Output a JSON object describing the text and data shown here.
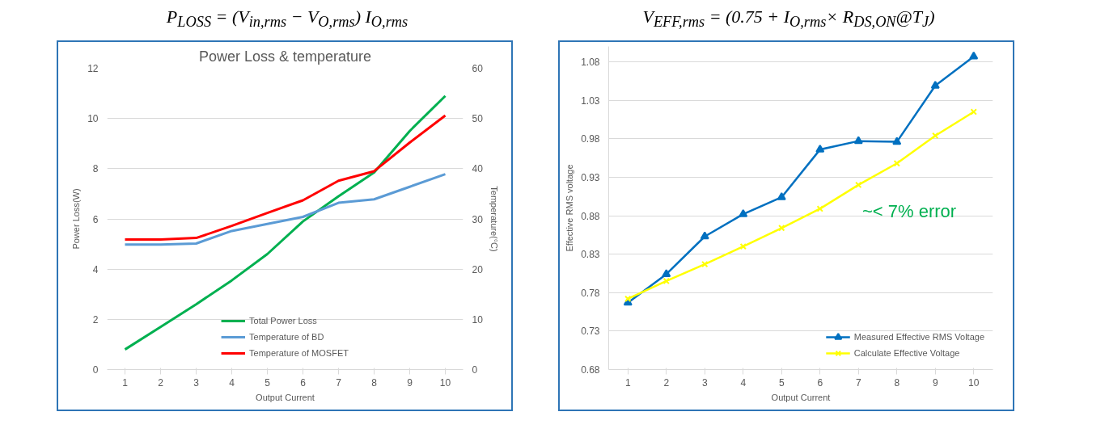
{
  "chart_data": [
    {
      "type": "line",
      "title": "P$_{LOSS}$ = (V$_{in,rms}$ − V$_{O,rms}$) I$_{O,rms}$",
      "subtitle": "Power Loss & temperature",
      "xlabel": "Output Current",
      "ylabel": "Power Loss(W)",
      "y2label": "Temperature(°C)",
      "categories": [
        "1",
        "2",
        "3",
        "4",
        "5",
        "6",
        "7",
        "8",
        "9",
        "10"
      ],
      "series": [
        {
          "name": "Total Power Loss",
          "color": "#00b050",
          "values": [
            0.8,
            1.7,
            2.6,
            3.55,
            4.6,
            5.9,
            6.9,
            7.85,
            9.5,
            10.9
          ]
        },
        {
          "name": "Temperature of BD",
          "color": "#5b9bd5",
          "axis": "y2",
          "values": [
            24.9,
            24.9,
            25.1,
            27.6,
            29.0,
            30.4,
            33.2,
            33.9,
            36.4,
            38.9
          ]
        },
        {
          "name": "Temperature of MOSFET",
          "color": "#ff0000",
          "axis": "y2",
          "values": [
            25.9,
            25.9,
            26.2,
            28.6,
            31.2,
            33.7,
            37.6,
            39.5,
            45.2,
            50.6
          ]
        }
      ],
      "ylim": [
        0,
        12
      ],
      "yticks": [
        0,
        2,
        4,
        6,
        8,
        10,
        12
      ],
      "y2lim": [
        0,
        60
      ],
      "y2ticks": [
        0,
        10,
        20,
        30,
        40,
        50,
        60
      ],
      "grid": "y",
      "legend": "bottom",
      "marker": "none"
    },
    {
      "type": "line",
      "title": "V$_{EFF,rms}$ = (0.75 + I$_{O,rms}$× R$_{DS,ON}$@T$_{J}$)",
      "xlabel": "Output Current",
      "ylabel": "Effective RMS voltage",
      "categories": [
        "1",
        "2",
        "3",
        "4",
        "5",
        "6",
        "7",
        "8",
        "9",
        "10"
      ],
      "series": [
        {
          "name": "Measured Effective RMS Voltage",
          "color": "#0070c0",
          "marker": "triangle",
          "values": [
            0.767,
            0.804,
            0.853,
            0.882,
            0.904,
            0.966,
            0.977,
            0.976,
            1.049,
            1.087
          ]
        },
        {
          "name": "Calculate Effective Voltage",
          "color": "#ffff00",
          "marker": "cross",
          "values": [
            0.772,
            0.795,
            0.817,
            0.84,
            0.864,
            0.889,
            0.92,
            0.948,
            0.984,
            1.015
          ]
        }
      ],
      "ylim": [
        0.68,
        1.1
      ],
      "yticks": [
        0.68,
        0.73,
        0.78,
        0.83,
        0.88,
        0.93,
        0.98,
        1.03,
        1.08
      ],
      "annotations": [
        "~< 7% error"
      ],
      "grid": "y",
      "legend": "bottom right"
    }
  ]
}
